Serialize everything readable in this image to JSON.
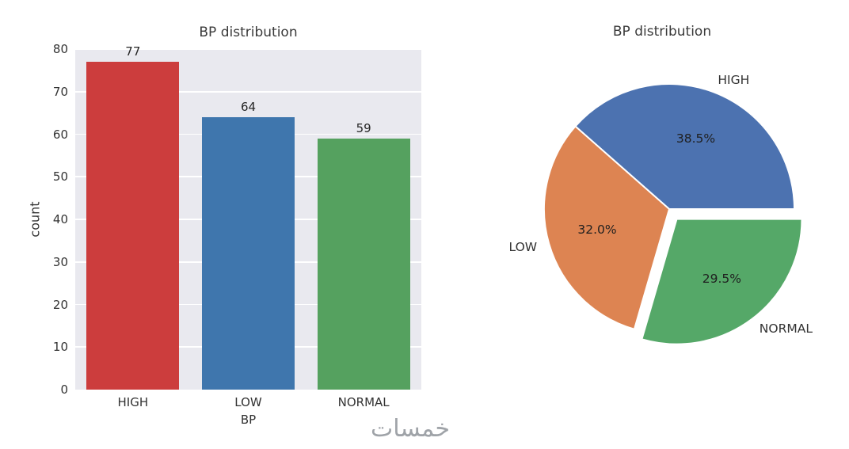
{
  "watermark": "خمسات",
  "chart_data": [
    {
      "type": "bar",
      "title": "BP distribution",
      "xlabel": "BP",
      "ylabel": "count",
      "categories": [
        "HIGH",
        "LOW",
        "NORMAL"
      ],
      "values": [
        77,
        64,
        59
      ],
      "value_labels": [
        "77",
        "64",
        "59"
      ],
      "bar_colors": [
        "#cc3d3d",
        "#3f76ad",
        "#55a15f"
      ],
      "ylim": [
        0,
        80
      ],
      "yticks": [
        0,
        10,
        20,
        30,
        40,
        50,
        60,
        70,
        80
      ],
      "grid": true,
      "plot_background": "#e9e9ef",
      "legend": "none"
    },
    {
      "type": "pie",
      "title": "BP distribution",
      "labels": [
        "HIGH",
        "LOW",
        "NORMAL"
      ],
      "values": [
        38.5,
        32.0,
        29.5
      ],
      "percent_labels": [
        "38.5%",
        "32.0%",
        "29.5%"
      ],
      "colors": [
        "#4c72b0",
        "#dd8452",
        "#55a868"
      ],
      "explode": [
        0,
        0,
        0.1
      ],
      "start_angle": 0,
      "direction": "counterclockwise",
      "legend": "none"
    }
  ]
}
